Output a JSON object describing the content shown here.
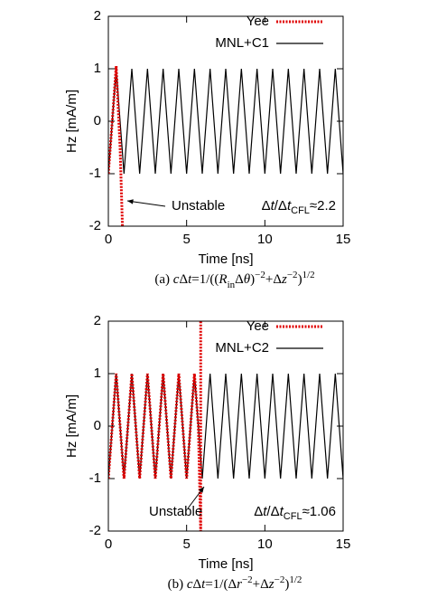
{
  "chart_data": [
    {
      "type": "line",
      "xlabel": "Time [ns]",
      "ylabel": "Hz [mA/m]",
      "xlim": [
        0,
        15
      ],
      "xticks": [
        0,
        5,
        10,
        15
      ],
      "ylim": [
        -2,
        2
      ],
      "yticks": [
        -2,
        -1,
        0,
        1,
        2
      ],
      "legend": "top-right",
      "series": [
        {
          "name": "Yee",
          "color": "#e00000",
          "style": "dotted",
          "x": [
            0,
            0.25,
            0.5,
            0.75,
            0.9
          ],
          "values": [
            -1,
            0,
            1.05,
            -0.5,
            -2
          ]
        },
        {
          "name": "MNL+C1",
          "color": "#000000",
          "style": "solid",
          "x": [
            0,
            0.25,
            0.5,
            0.75,
            1,
            1.25,
            1.5,
            1.75,
            2,
            2.25,
            2.5,
            2.75,
            3,
            3.25,
            3.5,
            3.75,
            4,
            4.25,
            4.5,
            4.75,
            5,
            5.25,
            5.5,
            5.75,
            6,
            6.25,
            6.5,
            6.75,
            7,
            7.25,
            7.5,
            7.75,
            8,
            8.25,
            8.5,
            8.75,
            9,
            9.25,
            9.5,
            9.75,
            10,
            10.25,
            10.5,
            10.75,
            11,
            11.25,
            11.5,
            11.75,
            12,
            12.25,
            12.5,
            12.75,
            13,
            13.25,
            13.5,
            13.75,
            14,
            14.25,
            14.5,
            14.75,
            15
          ],
          "values": [
            -1,
            0,
            1,
            0,
            -1,
            0,
            1,
            0,
            -1,
            0,
            1,
            0,
            -1,
            0,
            1,
            0,
            -1,
            0,
            1,
            0,
            -1,
            0,
            1,
            0,
            -1,
            0,
            1,
            0,
            -1,
            0,
            1,
            0,
            -1,
            0,
            1,
            0,
            -1,
            0,
            1,
            0,
            -1,
            0,
            1,
            0,
            -1,
            0,
            1,
            0,
            -1,
            0,
            1,
            0,
            -1,
            0,
            1,
            0,
            -1,
            0,
            1,
            0,
            -1
          ]
        }
      ],
      "annotations": [
        {
          "segments": [
            {
              "text": "Unstable",
              "style": "normal"
            }
          ]
        },
        {
          "segments": [
            {
              "text": "Δ",
              "style": "normal"
            },
            {
              "text": "t",
              "style": "italic"
            },
            {
              "text": "/Δ",
              "style": "normal"
            },
            {
              "text": "t",
              "style": "italic"
            },
            {
              "text": "CFL",
              "style": "sub"
            },
            {
              "text": "≈2.2",
              "style": "normal"
            }
          ]
        }
      ],
      "caption": [
        {
          "text": "(a) ",
          "style": "normal"
        },
        {
          "text": "c",
          "style": "italic"
        },
        {
          "text": "Δ",
          "style": "normal"
        },
        {
          "text": "t",
          "style": "italic"
        },
        {
          "text": "=1/((",
          "style": "normal"
        },
        {
          "text": "R",
          "style": "italic"
        },
        {
          "text": "in",
          "style": "sub"
        },
        {
          "text": "Δ",
          "style": "normal"
        },
        {
          "text": "θ",
          "style": "italic"
        },
        {
          "text": ")",
          "style": "normal"
        },
        {
          "text": "−2",
          "style": "sup"
        },
        {
          "text": "+Δ",
          "style": "normal"
        },
        {
          "text": "z",
          "style": "italic"
        },
        {
          "text": "−2",
          "style": "sup"
        },
        {
          "text": ")",
          "style": "normal"
        },
        {
          "text": "1/2",
          "style": "sup"
        }
      ]
    },
    {
      "type": "line",
      "xlabel": "Time [ns]",
      "ylabel": "Hz [mA/m]",
      "xlim": [
        0,
        15
      ],
      "xticks": [
        0,
        5,
        10,
        15
      ],
      "ylim": [
        -2,
        2
      ],
      "yticks": [
        -2,
        -1,
        0,
        1,
        2
      ],
      "legend": "top-right",
      "series": [
        {
          "name": "Yee",
          "color": "#e00000",
          "style": "dotted",
          "x": [
            0,
            0.25,
            0.5,
            0.75,
            1,
            1.25,
            1.5,
            1.75,
            2,
            2.25,
            2.5,
            2.75,
            3,
            3.25,
            3.5,
            3.75,
            4,
            4.25,
            4.5,
            4.75,
            5,
            5.25,
            5.5,
            5.75,
            5.9,
            5.9
          ],
          "values": [
            -1,
            0,
            1,
            0,
            -1,
            0,
            1,
            0,
            -1,
            0,
            1,
            0,
            -1,
            0,
            1,
            0,
            -1,
            0,
            1,
            0,
            -1,
            0,
            1,
            0,
            -2,
            2
          ]
        },
        {
          "name": "MNL+C2",
          "color": "#000000",
          "style": "solid",
          "x": [
            0,
            0.25,
            0.5,
            0.75,
            1,
            1.25,
            1.5,
            1.75,
            2,
            2.25,
            2.5,
            2.75,
            3,
            3.25,
            3.5,
            3.75,
            4,
            4.25,
            4.5,
            4.75,
            5,
            5.25,
            5.5,
            5.75,
            6,
            6.25,
            6.5,
            6.75,
            7,
            7.25,
            7.5,
            7.75,
            8,
            8.25,
            8.5,
            8.75,
            9,
            9.25,
            9.5,
            9.75,
            10,
            10.25,
            10.5,
            10.75,
            11,
            11.25,
            11.5,
            11.75,
            12,
            12.25,
            12.5,
            12.75,
            13,
            13.25,
            13.5,
            13.75,
            14,
            14.25,
            14.5,
            14.75,
            15
          ],
          "values": [
            -1,
            0,
            1,
            0,
            -1,
            0,
            1,
            0,
            -1,
            0,
            1,
            0,
            -1,
            0,
            1,
            0,
            -1,
            0,
            1,
            0,
            -1,
            0,
            1,
            0,
            -1,
            0,
            1,
            0,
            -1,
            0,
            1,
            0,
            -1,
            0,
            1,
            0,
            -1,
            0,
            1,
            0,
            -1,
            0,
            1,
            0,
            -1,
            0,
            1,
            0,
            -1,
            0,
            1,
            0,
            -1,
            0,
            1,
            0,
            -1,
            0,
            1,
            0,
            -1
          ]
        }
      ],
      "annotations": [
        {
          "segments": [
            {
              "text": "Unstable",
              "style": "normal"
            }
          ]
        },
        {
          "segments": [
            {
              "text": "Δ",
              "style": "normal"
            },
            {
              "text": "t",
              "style": "italic"
            },
            {
              "text": "/Δ",
              "style": "normal"
            },
            {
              "text": "t",
              "style": "italic"
            },
            {
              "text": "CFL",
              "style": "sub"
            },
            {
              "text": "≈1.06",
              "style": "normal"
            }
          ]
        }
      ],
      "caption": [
        {
          "text": "(b) ",
          "style": "normal"
        },
        {
          "text": "c",
          "style": "italic"
        },
        {
          "text": "Δ",
          "style": "normal"
        },
        {
          "text": "t",
          "style": "italic"
        },
        {
          "text": "=1/(Δ",
          "style": "normal"
        },
        {
          "text": "r",
          "style": "italic"
        },
        {
          "text": "−2",
          "style": "sup"
        },
        {
          "text": "+Δ",
          "style": "normal"
        },
        {
          "text": "z",
          "style": "italic"
        },
        {
          "text": "−2",
          "style": "sup"
        },
        {
          "text": ")",
          "style": "normal"
        },
        {
          "text": "1/2",
          "style": "sup"
        }
      ]
    }
  ]
}
